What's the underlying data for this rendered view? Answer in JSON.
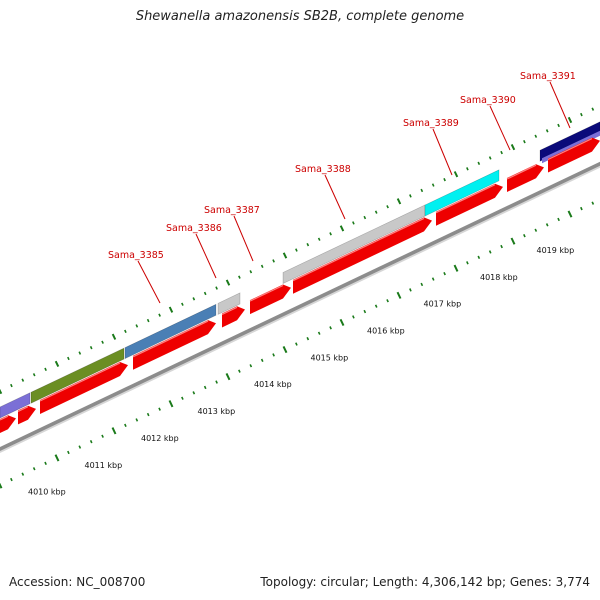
{
  "title": "Shewanella amazonensis SB2B, complete genome",
  "accession": "Accession: NC_008700",
  "summary": "Topology: circular; Length: 4,306,142 bp; Genes: 3,774",
  "gene_labels": [
    "Sama_3385",
    "Sama_3386",
    "Sama_3387",
    "Sama_3388",
    "Sama_3389",
    "Sama_3390",
    "Sama_3391"
  ],
  "kbp_labels": [
    "4010 kbp",
    "4011 kbp",
    "4012 kbp",
    "4013 kbp",
    "4014 kbp",
    "4015 kbp",
    "4016 kbp",
    "4017 kbp",
    "4018 kbp",
    "4019 kbp"
  ],
  "colors": {
    "cds": "#ee0000",
    "label": "#cc0000",
    "tick": "#1a7a1a",
    "backbone": "#8c8c8c",
    "feature_purple": "#7b6fd6",
    "feature_olive": "#6b8e23",
    "feature_steelblue": "#4a7fb5",
    "feature_gray": "#c8c8c8",
    "feature_cyan": "#00f0f0",
    "feature_navy": "#0a0a7a"
  }
}
